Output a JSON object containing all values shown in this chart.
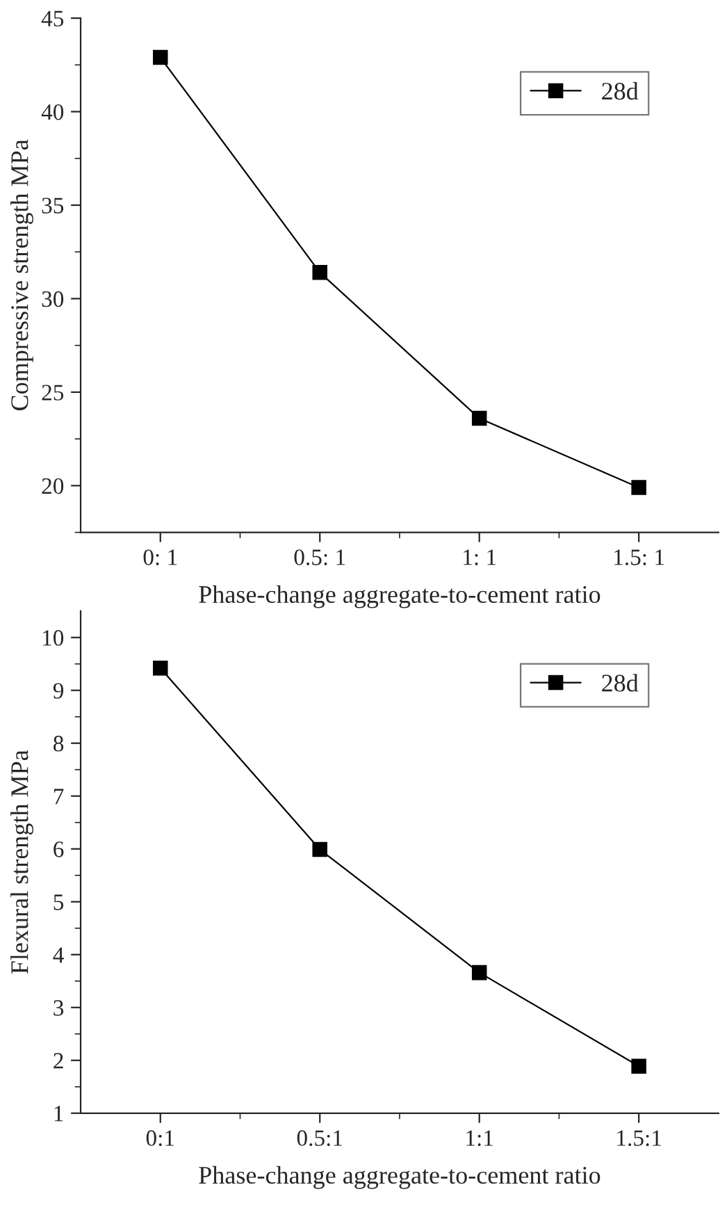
{
  "chart_data": [
    {
      "type": "line",
      "categories": [
        "0: 1",
        "0.5: 1",
        "1: 1",
        "1.5: 1"
      ],
      "xlabel": "Phase-change aggregate-to-cement ratio",
      "ylabel": "Compressive strength MPa",
      "series": [
        {
          "name": "28d",
          "color": "#000000",
          "values": [
            42.9,
            31.4,
            23.6,
            19.9
          ]
        }
      ],
      "ylim": [
        17.5,
        45
      ],
      "yticks": [
        20,
        25,
        30,
        35,
        40,
        45
      ],
      "marker": "square",
      "line_style": "solid",
      "legend": "top right",
      "grid": false
    },
    {
      "type": "line",
      "categories": [
        "0:1",
        "0.5:1",
        "1:1",
        "1.5:1"
      ],
      "xlabel": "Phase-change aggregate-to-cement ratio",
      "ylabel": "Flexural strength MPa",
      "series": [
        {
          "name": "28d",
          "color": "#000000",
          "values": [
            9.42,
            5.99,
            3.66,
            1.89
          ]
        }
      ],
      "ylim": [
        1,
        10.5
      ],
      "yticks": [
        1,
        2,
        3,
        4,
        5,
        6,
        7,
        8,
        9,
        10
      ],
      "marker": "square",
      "line_style": "solid",
      "legend": "top right",
      "grid": false
    }
  ]
}
